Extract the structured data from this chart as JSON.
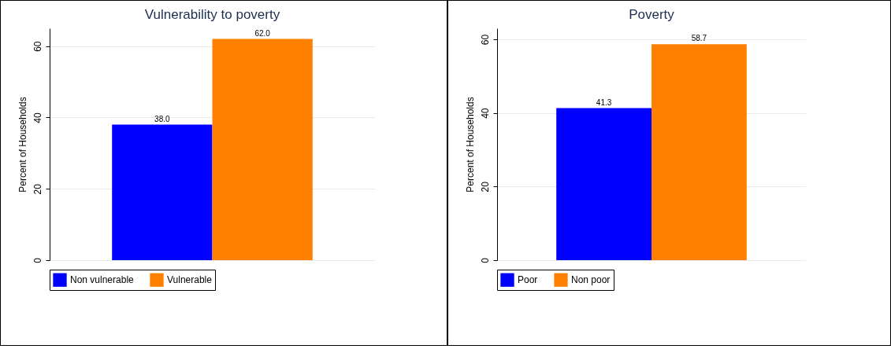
{
  "chart_data": [
    {
      "type": "bar",
      "title": "Vulnerability to poverty",
      "ylabel": "Percent of Households",
      "categories": [
        null
      ],
      "series": [
        {
          "name": "Non vulnerable",
          "color": "#0000ff",
          "values": [
            38.0
          ],
          "value_labels": [
            "38.0"
          ]
        },
        {
          "name": "Vulnerable",
          "color": "#ff8000",
          "values": [
            62.0
          ],
          "value_labels": [
            "62.0"
          ]
        }
      ],
      "ylim": [
        0,
        65
      ],
      "yticks": [
        0,
        20,
        40,
        60
      ],
      "grid": "y",
      "legend": "bottom"
    },
    {
      "type": "bar",
      "title": "Poverty",
      "ylabel": "Percent of Households",
      "categories": [
        null
      ],
      "series": [
        {
          "name": "Poor",
          "color": "#0000ff",
          "values": [
            41.3
          ],
          "value_labels": [
            "41.3"
          ]
        },
        {
          "name": "Non poor",
          "color": "#ff8000",
          "values": [
            58.7
          ],
          "value_labels": [
            "58.7"
          ]
        }
      ],
      "ylim": [
        0,
        63
      ],
      "yticks": [
        0,
        20,
        40,
        60
      ],
      "grid": "y",
      "legend": "bottom"
    }
  ]
}
